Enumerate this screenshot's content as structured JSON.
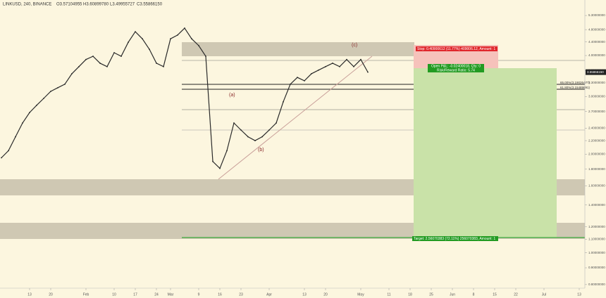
{
  "chart_data": {
    "type": "line",
    "title": "LINKUSD, 240, BINANCE",
    "ohlc": [
      "O3.57104955",
      "H3.60899780",
      "L3.49955727",
      "C3.55866150"
    ],
    "log_scale": true,
    "ylim": [
      0.78,
      5.91
    ],
    "yticks": [
      {
        "value": 0.8,
        "label": "0.80000000"
      },
      {
        "value": 0.9,
        "label": "0.90000000"
      },
      {
        "value": 1.0,
        "label": "1.00000000"
      },
      {
        "value": 1.1,
        "label": "1.10000000"
      },
      {
        "value": 1.2,
        "label": "1.20000000"
      },
      {
        "value": 1.4,
        "label": "1.40000000"
      },
      {
        "value": 1.6,
        "label": "1.60000000"
      },
      {
        "value": 1.8,
        "label": "1.80000000"
      },
      {
        "value": 2.0,
        "label": "2.00000000"
      },
      {
        "value": 2.2,
        "label": "2.20000000"
      },
      {
        "value": 2.4,
        "label": "2.40000000"
      },
      {
        "value": 2.7,
        "label": "2.70000000"
      },
      {
        "value": 3.0,
        "label": "3.00000000"
      },
      {
        "value": 3.3,
        "label": "3.30000000"
      },
      {
        "value": 3.6,
        "label": "3.60000000"
      },
      {
        "value": 4.0,
        "label": "4.00000000"
      },
      {
        "value": 4.4,
        "label": "4.40000000"
      },
      {
        "value": 4.8,
        "label": "4.80000000"
      },
      {
        "value": 5.3,
        "label": "5.30000000"
      }
    ],
    "categories": [
      null,
      null,
      null,
      null,
      "13",
      null,
      null,
      "20",
      null,
      null,
      null,
      null,
      "Feb",
      null,
      null,
      null,
      "10",
      null,
      null,
      "17",
      null,
      null,
      "24",
      null,
      "Mar",
      null,
      null,
      null,
      "9",
      null,
      null,
      "16",
      null,
      null,
      "23",
      null,
      null,
      null,
      "Apr",
      null,
      null,
      null,
      null,
      "13",
      null,
      null,
      "20",
      null,
      null,
      null,
      null,
      "May",
      null,
      null,
      null,
      "11",
      null,
      null,
      "18",
      null,
      null,
      "25",
      null,
      null,
      "Jun",
      null,
      null,
      "8",
      null,
      null,
      "15",
      null,
      null,
      "22",
      null,
      null,
      null,
      "Jul",
      null,
      null,
      null,
      null,
      "13",
      null
    ],
    "series": [
      {
        "name": "LINKUSD",
        "color": "#2a2a2a",
        "values": [
          1.95,
          2.05,
          2.26,
          2.49,
          2.68,
          2.82,
          2.96,
          3.11,
          3.19,
          3.27,
          3.52,
          3.7,
          3.89,
          3.98,
          3.79,
          3.7,
          4.08,
          3.98,
          4.39,
          4.73,
          4.5,
          4.18,
          3.79,
          3.7,
          4.5,
          4.62,
          4.85,
          4.5,
          4.29,
          3.98,
          1.9,
          1.81,
          2.05,
          2.49,
          2.37,
          2.26,
          2.2,
          2.26,
          2.37,
          2.49,
          2.89,
          3.27,
          3.43,
          3.35,
          3.52,
          3.61,
          3.7,
          3.79,
          3.7,
          3.89,
          3.7,
          3.89,
          3.56,
          null,
          null,
          null,
          null,
          null,
          null,
          null,
          null,
          null,
          null,
          null,
          null,
          null,
          null,
          null,
          null,
          null,
          null,
          null,
          null,
          null,
          null,
          null,
          null,
          null,
          null,
          null,
          null,
          null,
          null,
          null
        ]
      }
    ],
    "current_price": "3.55866150",
    "annotations": {
      "stop": "Stop: 0.40900612 (11.77%) 409006.12, Amount: 1",
      "open": "Open P&L: -0.02400018, Qty: 0",
      "rr": "Risk/Reward Ratio: 5.74",
      "target": "Target: 2.56070383 (72.11%) 256070383, Amount: 1",
      "wave_a": "(a)",
      "wave_b": "(b)",
      "wave_c": "(c)",
      "fib_1": "65.00%(3.19026477)",
      "fib_2": "61.80%(3.15489691)"
    }
  }
}
